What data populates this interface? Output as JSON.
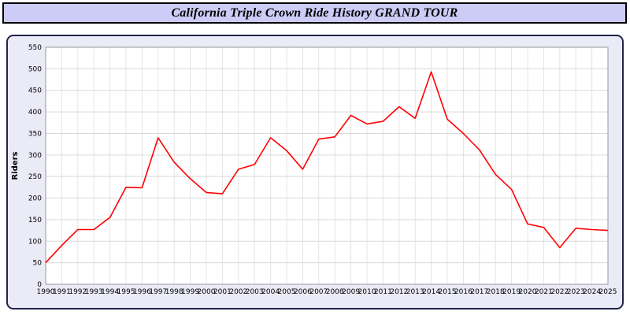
{
  "header": {
    "title": "California Triple Crown Ride History GRAND TOUR"
  },
  "chart_data": {
    "type": "line",
    "title": "California Triple Crown Ride History GRAND TOUR",
    "xlabel": "",
    "ylabel": "Riders",
    "ylim": [
      0,
      550
    ],
    "ytick_step": 50,
    "grid": true,
    "legend": "none",
    "line_color": "#ff0000",
    "x": [
      1990,
      1991,
      1992,
      1993,
      1994,
      1995,
      1996,
      1997,
      1998,
      1999,
      2000,
      2001,
      2002,
      2003,
      2004,
      2005,
      2006,
      2007,
      2008,
      2009,
      2010,
      2011,
      2012,
      2013,
      2014,
      2015,
      2016,
      2017,
      2018,
      2019,
      2020,
      2021,
      2022,
      2023,
      2024,
      2025
    ],
    "values": [
      50,
      90,
      127,
      127,
      155,
      225,
      224,
      340,
      283,
      245,
      213,
      210,
      267,
      278,
      340,
      310,
      267,
      337,
      342,
      392,
      372,
      378,
      412,
      385,
      493,
      383,
      350,
      312,
      255,
      220,
      140,
      132,
      85,
      130,
      127,
      125
    ]
  },
  "style": {
    "plot_bg": "#ffffff",
    "grid_color_h": "#d9d9d9",
    "grid_color_v": "#e4e4e4",
    "plot_border": "#9a9a9a",
    "panel_bg": "#ebebf7",
    "title_bg": "#ccccf6"
  }
}
